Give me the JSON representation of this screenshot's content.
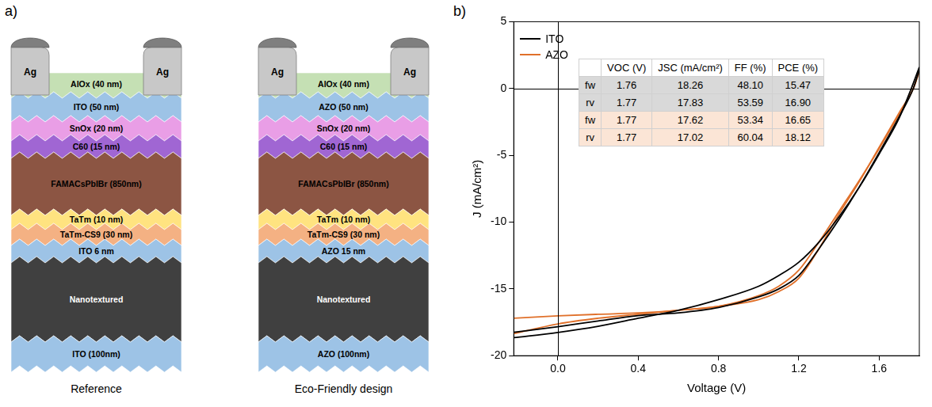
{
  "panel_labels": [
    "a)",
    "b)"
  ],
  "diagram": {
    "stacks": [
      {
        "caption": "Reference",
        "electrodes": [
          "Ag",
          "Ag"
        ],
        "layers": [
          {
            "label": "AlOx (40 nm)",
            "color": "#c5e0b4"
          },
          {
            "label": "ITO (50 nm)",
            "color": "#9dc3e6"
          },
          {
            "label": "SnOx (20 nm)",
            "color": "#e99ee6"
          },
          {
            "label": "C60 (15 nm)",
            "color": "#a066d3"
          },
          {
            "label": "FAMACsPbIBr (850nm)",
            "color": "#8c5543"
          },
          {
            "label": "TaTm (10 nm)",
            "color": "#ffe380"
          },
          {
            "label": "TaTm-CS9 (30 nm)",
            "color": "#f4b183"
          },
          {
            "label": "ITO 6 nm",
            "color": "#9dc3e6"
          },
          {
            "label": "Nanotextured",
            "color": "#404040"
          },
          {
            "label": "ITO (100nm)",
            "color": "#9dc3e6"
          }
        ]
      },
      {
        "caption": "Eco-Friendly design",
        "electrodes": [
          "Ag",
          "Ag"
        ],
        "layers": [
          {
            "label": "AlOx (40 nm)",
            "color": "#c5e0b4"
          },
          {
            "label": "AZO (50 nm)",
            "color": "#9dc3e6"
          },
          {
            "label": "SnOx (20 nm)",
            "color": "#e99ee6"
          },
          {
            "label": "C60 (15 nm)",
            "color": "#a066d3"
          },
          {
            "label": "FAMACsPbIBr (850nm)",
            "color": "#8c5543"
          },
          {
            "label": "TaTm (10 nm)",
            "color": "#ffe380"
          },
          {
            "label": "TaTm-CS9 (30 nm)",
            "color": "#f4b183"
          },
          {
            "label": "AZO 15 nm",
            "color": "#9dc3e6"
          },
          {
            "label": "Nanotextured",
            "color": "#404040"
          },
          {
            "label": "AZO (100nm)",
            "color": "#9dc3e6"
          }
        ]
      }
    ]
  },
  "chart_data": {
    "type": "line",
    "x_label": "Voltage (V)",
    "y_label": "J (mA/cm²)",
    "xlim": [
      -0.22,
      1.8
    ],
    "xticks": [
      {
        "value": 0,
        "label": "0.0"
      },
      0.4,
      0.8,
      1.2,
      1.6
    ],
    "ylim": [
      -20,
      5
    ],
    "yticks": [
      -20,
      -15,
      -10,
      -5,
      0,
      5
    ],
    "grid": false,
    "legend": "upper left",
    "series": [
      {
        "name": "ITO",
        "color": "#000000",
        "sweeps": [
          {
            "x": [
              -0.22,
              0,
              0.2,
              0.4,
              0.6,
              0.8,
              1.0,
              1.1,
              1.2,
              1.3,
              1.4,
              1.5,
              1.6,
              1.7,
              1.76,
              1.8
            ],
            "y": [
              -18.65,
              -18.26,
              -17.8,
              -17.2,
              -16.6,
              -15.8,
              -14.8,
              -14.0,
              -13.0,
              -11.5,
              -9.6,
              -7.4,
              -4.9,
              -2.2,
              0,
              1.6
            ]
          },
          {
            "x": [
              -0.22,
              0,
              0.2,
              0.4,
              0.6,
              0.8,
              1.0,
              1.1,
              1.2,
              1.3,
              1.4,
              1.5,
              1.6,
              1.7,
              1.77,
              1.8
            ],
            "y": [
              -18.25,
              -17.83,
              -17.4,
              -17.0,
              -16.8,
              -16.4,
              -15.6,
              -15.0,
              -14.0,
              -12.0,
              -9.8,
              -7.4,
              -4.8,
              -2.1,
              0,
              1.4
            ]
          }
        ]
      },
      {
        "name": "AZO",
        "color": "#e0702a",
        "sweeps": [
          {
            "x": [
              -0.22,
              0,
              0.2,
              0.4,
              0.6,
              0.8,
              1.0,
              1.1,
              1.2,
              1.3,
              1.4,
              1.5,
              1.6,
              1.7,
              1.77,
              1.8
            ],
            "y": [
              -18.35,
              -17.62,
              -17.2,
              -16.9,
              -16.6,
              -16.3,
              -15.5,
              -14.8,
              -13.6,
              -11.5,
              -9.2,
              -6.9,
              -4.5,
              -1.9,
              0,
              1.3
            ]
          },
          {
            "x": [
              -0.22,
              0,
              0.2,
              0.4,
              0.6,
              0.8,
              1.0,
              1.1,
              1.2,
              1.3,
              1.4,
              1.5,
              1.6,
              1.7,
              1.77,
              1.8
            ],
            "y": [
              -17.2,
              -17.02,
              -16.9,
              -16.8,
              -16.6,
              -16.3,
              -15.8,
              -15.2,
              -14.2,
              -12.0,
              -9.4,
              -7.0,
              -4.4,
              -1.8,
              0,
              1.3
            ]
          }
        ]
      }
    ],
    "table": {
      "headers": [
        "VOC (V)",
        "JSC (mA/cm²)",
        "FF (%)",
        "PCE (%)"
      ],
      "rows": [
        {
          "label": "fw",
          "color": "#d9d9d9",
          "cells": [
            "1.76",
            "18.26",
            "48.10",
            "15.47"
          ]
        },
        {
          "label": "rv",
          "color": "#d9d9d9",
          "cells": [
            "1.77",
            "17.83",
            "53.59",
            "16.90"
          ]
        },
        {
          "label": "fw",
          "color": "#fbe5d6",
          "cells": [
            "1.77",
            "17.62",
            "53.34",
            "16.65"
          ]
        },
        {
          "label": "rv",
          "color": "#fbe5d6",
          "cells": [
            "1.77",
            "17.02",
            "60.04",
            "18.12"
          ]
        }
      ]
    }
  }
}
